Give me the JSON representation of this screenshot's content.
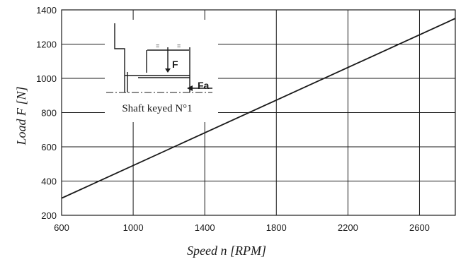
{
  "chart_data": {
    "type": "line",
    "title": "",
    "xlabel": "Speed n [RPM]",
    "ylabel": "Load F [N]",
    "xlim": [
      600,
      2800
    ],
    "ylim": [
      200,
      1400
    ],
    "x_ticks": [
      600,
      1000,
      1400,
      1800,
      2200,
      2600
    ],
    "y_ticks": [
      200,
      400,
      600,
      800,
      1000,
      1200,
      1400
    ],
    "grid": true,
    "legend": "none",
    "series": [
      {
        "x": [
          600,
          2800
        ],
        "y": [
          300,
          1350
        ]
      }
    ]
  },
  "inset": {
    "caption": "Shaft keyed N°1",
    "force_label": "F",
    "axial_force_label": "Fa",
    "equal_mark": "="
  },
  "colors": {
    "line": "#1a1a1a",
    "grid": "#1a1a1a",
    "background": "#ffffff"
  }
}
